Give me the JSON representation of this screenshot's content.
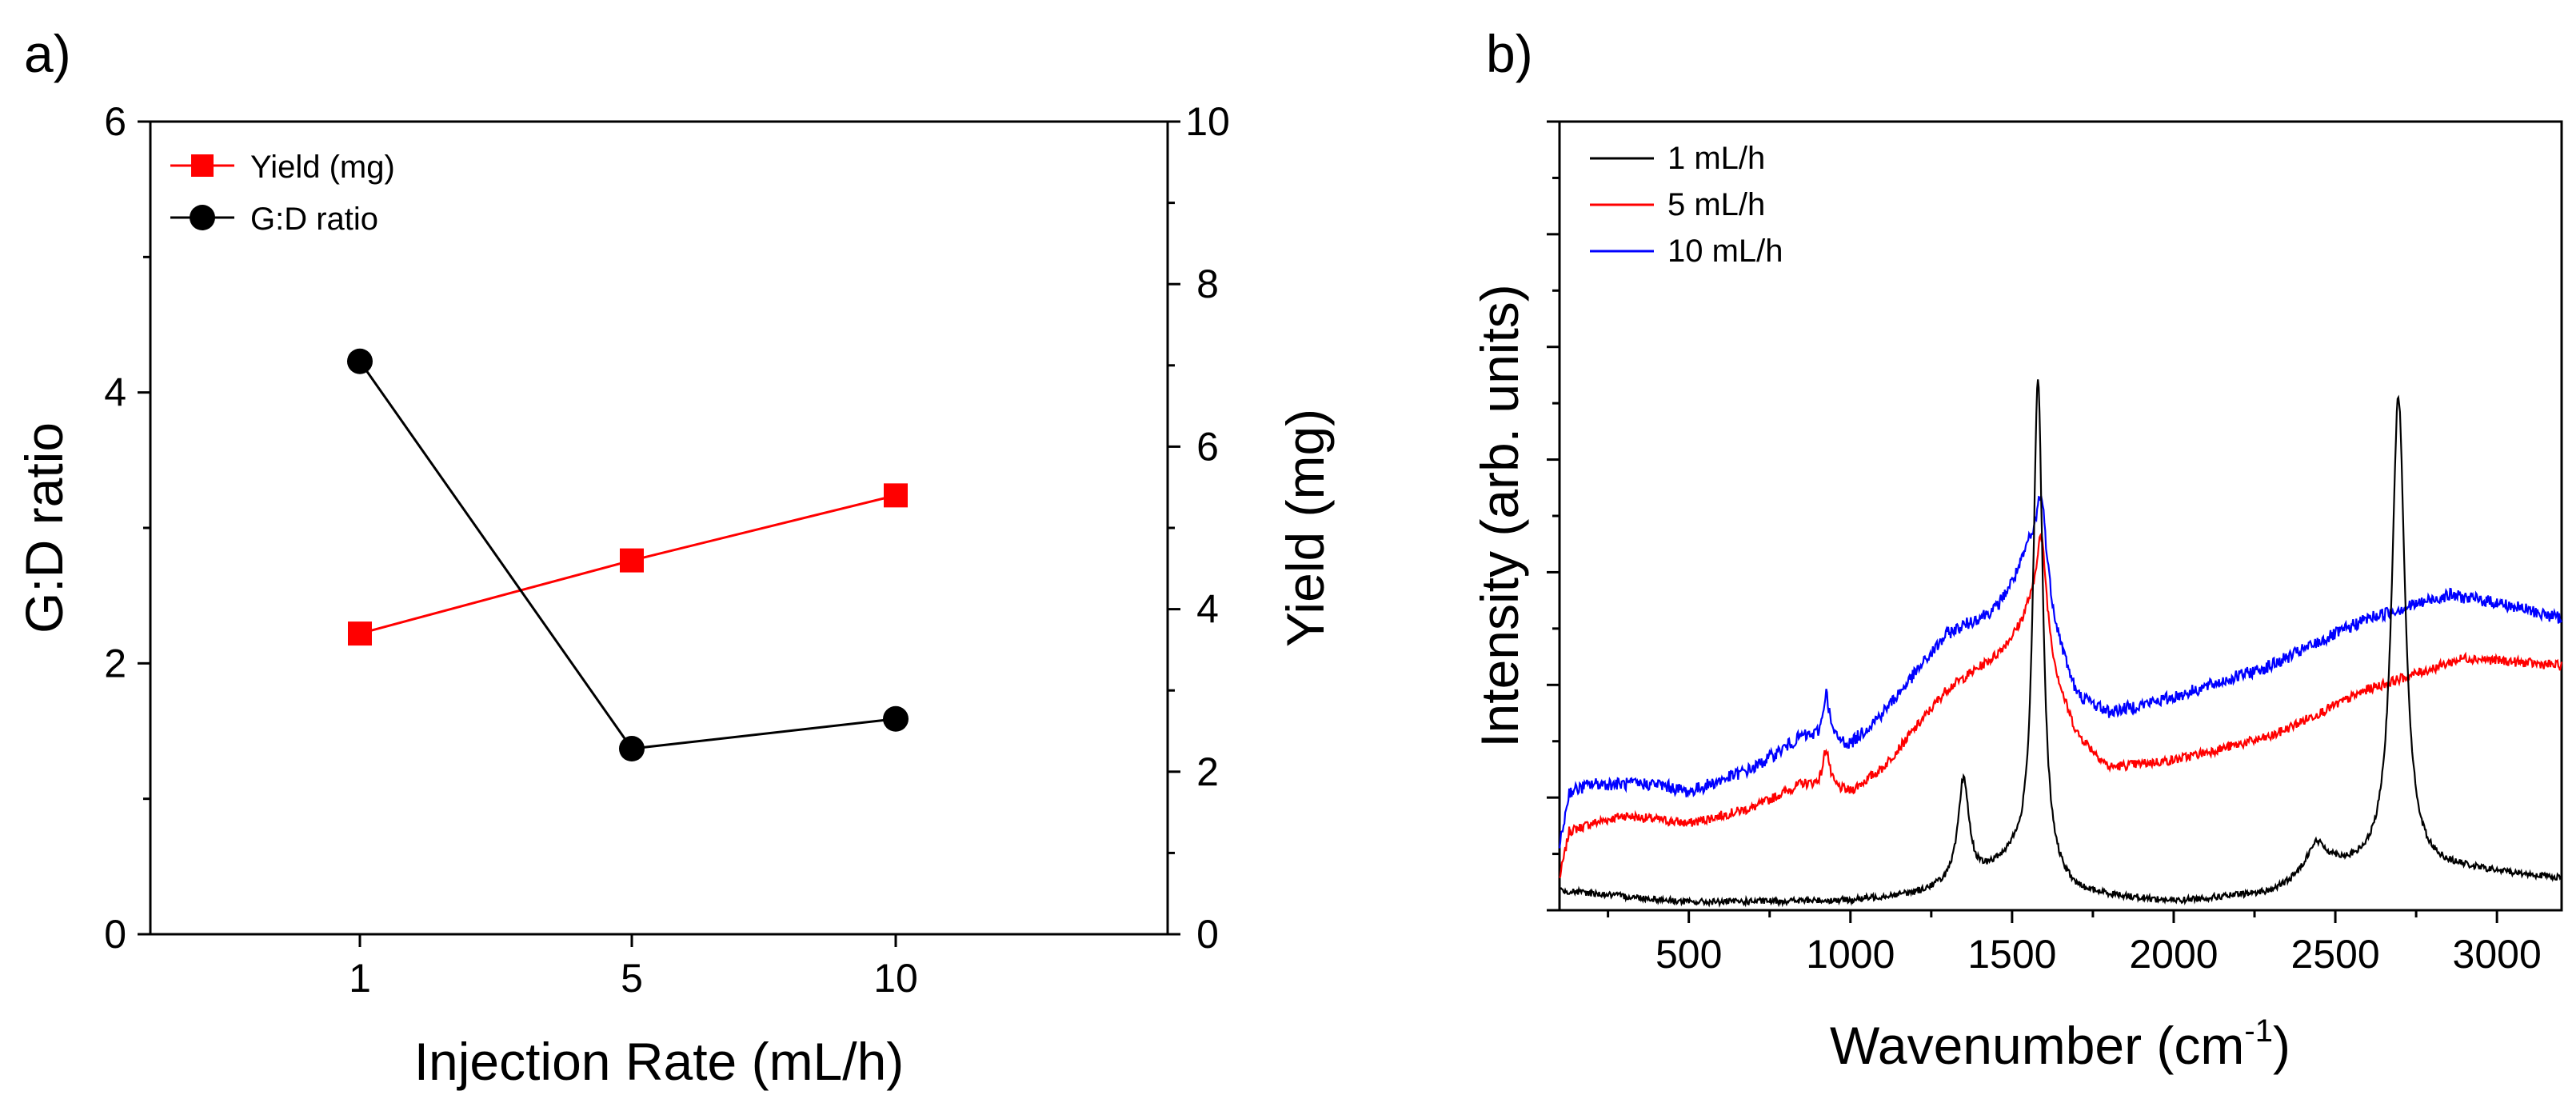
{
  "chart_data": [
    {
      "panel": "a)",
      "type": "line",
      "xlabel": "Injection Rate (mL/h)",
      "ylabel_left": "G:D ratio",
      "ylabel_right": "Yield (mg)",
      "categories": [
        "1",
        "5",
        "10"
      ],
      "ylim_left": [
        0,
        6
      ],
      "ylim_right": [
        0,
        10
      ],
      "left_ticks": [
        "0",
        "2",
        "4",
        "6"
      ],
      "right_ticks": [
        "0",
        "2",
        "4",
        "6",
        "8",
        "10"
      ],
      "series": [
        {
          "name": "Yield (mg)",
          "axis": "right",
          "color": "#ff0000",
          "marker": "square",
          "values": [
            3.7,
            4.6,
            5.4
          ]
        },
        {
          "name": "G:D ratio",
          "axis": "left",
          "color": "#000000",
          "marker": "circle",
          "values": [
            4.23,
            1.37,
            1.59
          ]
        }
      ],
      "legend": "top-left"
    },
    {
      "panel": "b)",
      "type": "line",
      "xlabel_main": "Wavenumber (cm",
      "xlabel_sup": "-1",
      "xlabel_end": ")",
      "ylabel": "Intensity (arb. units)",
      "xlim": [
        100,
        3200
      ],
      "x_ticks": [
        "500",
        "1000",
        "1500",
        "2000",
        "2500",
        "3000"
      ],
      "y_tick_labels": false,
      "legend": "top-left",
      "series": [
        {
          "name": "1 mL/h",
          "color": "#000000",
          "baseline": [
            [
              100,
              0.025
            ],
            [
              500,
              0.01
            ],
            [
              1000,
              0.012
            ],
            [
              1200,
              0.02
            ],
            [
              1400,
              0.04
            ],
            [
              1500,
              0.06
            ],
            [
              1700,
              0.02
            ],
            [
              2000,
              0.01
            ],
            [
              2300,
              0.02
            ],
            [
              2500,
              0.05
            ],
            [
              2900,
              0.05
            ],
            [
              3200,
              0.04
            ]
          ],
          "peaks": [
            [
              1350,
              0.13,
              20
            ],
            [
              1580,
              0.63,
              18
            ],
            [
              2440,
              0.04,
              40
            ],
            [
              2695,
              0.6,
              25
            ]
          ],
          "noise": 0.004
        },
        {
          "name": "5 mL/h",
          "color": "#ff0000",
          "baseline": [
            [
              100,
              0.04
            ],
            [
              130,
              0.1
            ],
            [
              200,
              0.11
            ],
            [
              300,
              0.12
            ],
            [
              500,
              0.11
            ],
            [
              700,
              0.13
            ],
            [
              850,
              0.16
            ],
            [
              1000,
              0.15
            ],
            [
              1100,
              0.18
            ],
            [
              1300,
              0.28
            ],
            [
              1450,
              0.32
            ],
            [
              1550,
              0.36
            ],
            [
              1700,
              0.22
            ],
            [
              1800,
              0.18
            ],
            [
              2000,
              0.19
            ],
            [
              2300,
              0.22
            ],
            [
              2600,
              0.28
            ],
            [
              2900,
              0.32
            ],
            [
              3200,
              0.31
            ]
          ],
          "peaks": [
            [
              925,
              0.05,
              12
            ],
            [
              1590,
              0.15,
              22
            ]
          ],
          "noise": 0.006
        },
        {
          "name": "10 mL/h",
          "color": "#0000ff",
          "baseline": [
            [
              100,
              0.08
            ],
            [
              130,
              0.15
            ],
            [
              200,
              0.16
            ],
            [
              400,
              0.16
            ],
            [
              500,
              0.15
            ],
            [
              700,
              0.18
            ],
            [
              850,
              0.22
            ],
            [
              1000,
              0.21
            ],
            [
              1100,
              0.25
            ],
            [
              1300,
              0.35
            ],
            [
              1450,
              0.38
            ],
            [
              1550,
              0.44
            ],
            [
              1700,
              0.27
            ],
            [
              1800,
              0.25
            ],
            [
              2000,
              0.27
            ],
            [
              2300,
              0.31
            ],
            [
              2600,
              0.37
            ],
            [
              2850,
              0.4
            ],
            [
              3000,
              0.39
            ],
            [
              3200,
              0.37
            ]
          ],
          "peaks": [
            [
              925,
              0.06,
              12
            ],
            [
              1590,
              0.13,
              22
            ]
          ],
          "noise": 0.008
        }
      ]
    }
  ]
}
